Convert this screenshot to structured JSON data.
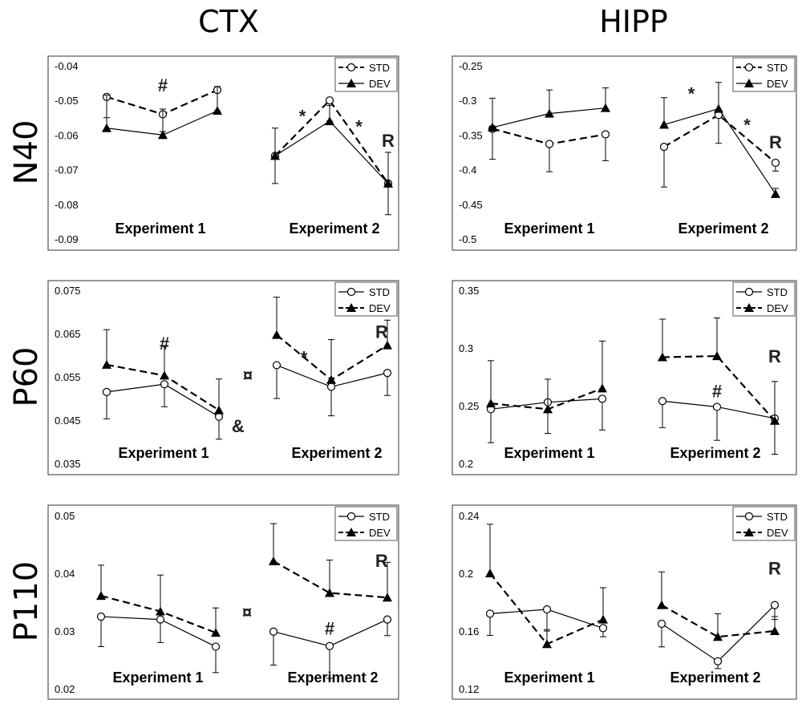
{
  "figure": {
    "column_titles": [
      "CTX",
      "HIPP"
    ],
    "row_titles": [
      "N40",
      "P60",
      "P110"
    ],
    "experiment_labels": [
      "Experiment 1",
      "Experiment 2"
    ]
  },
  "colors": {
    "line": "#000000",
    "frame": "#555555"
  },
  "chart_data": [
    {
      "type": "line",
      "region": "CTX",
      "component": "N40",
      "ylim": [
        -0.09,
        -0.04
      ],
      "yticks": [
        "-0.04",
        "-0.05",
        "-0.06",
        "-0.07",
        "-0.08",
        "-0.09"
      ],
      "yticks_values": [
        -0.04,
        -0.05,
        -0.06,
        -0.07,
        -0.08,
        -0.09
      ],
      "legend": {
        "position": "top-right",
        "entries": [
          "STD",
          "DEV"
        ]
      },
      "series": [
        {
          "name": "STD",
          "style": "dashed-open-circle",
          "values": [
            [
              -0.049,
              -0.054,
              -0.047
            ],
            [
              -0.066,
              -0.05,
              -0.074
            ]
          ],
          "err": [
            [
              0.006,
              0.005,
              0.006
            ],
            [
              0.008,
              0.006,
              0.009
            ]
          ]
        },
        {
          "name": "DEV",
          "style": "solid-filled-triangle",
          "values": [
            [
              -0.058,
              -0.06,
              -0.053
            ],
            [
              -0.066,
              -0.056,
              -0.074
            ]
          ],
          "err": [
            [
              0.0095,
              0.0075,
              0.007
            ],
            [
              0.008,
              0.0045,
              0.009
            ]
          ]
        }
      ],
      "annotations": [
        {
          "text": "#",
          "exp": 0,
          "x": 1,
          "y": -0.0455
        },
        {
          "text": "*",
          "exp": 1,
          "x": 0.5,
          "y": -0.0545
        },
        {
          "text": "*",
          "exp": 1,
          "x": 1.5,
          "y": -0.0575
        },
        {
          "text": "R",
          "exp": 1,
          "x": 2,
          "y": -0.0615
        }
      ]
    },
    {
      "type": "line",
      "region": "HIPP",
      "component": "N40",
      "ylim": [
        -0.5,
        -0.25
      ],
      "yticks": [
        "-0.25",
        "-0.3",
        "-0.35",
        "-0.4",
        "-0.45",
        "-0.5"
      ],
      "yticks_values": [
        -0.25,
        -0.3,
        -0.35,
        -0.4,
        -0.45,
        -0.5
      ],
      "legend": {
        "position": "top-right",
        "entries": [
          "STD",
          "DEV"
        ]
      },
      "series": [
        {
          "name": "STD",
          "style": "dashed-open-circle",
          "values": [
            [
              -0.341,
              -0.363,
              -0.349
            ],
            [
              -0.367,
              -0.321,
              -0.39
            ]
          ],
          "err": [
            [
              0.044,
              0.04,
              0.038
            ],
            [
              0.058,
              0.041,
              0.012
            ]
          ]
        },
        {
          "name": "DEV",
          "style": "solid-filled-triangle",
          "values": [
            [
              -0.339,
              -0.319,
              -0.311
            ],
            [
              -0.335,
              -0.312,
              -0.435
            ]
          ],
          "err": [
            [
              0.042,
              0.034,
              0.029
            ],
            [
              0.039,
              0.038,
              0.008
            ]
          ]
        }
      ],
      "annotations": [
        {
          "text": "*",
          "exp": 1,
          "x": 0.5,
          "y": -0.29
        },
        {
          "text": "*",
          "exp": 1,
          "x": 1.5,
          "y": -0.335
        },
        {
          "text": "R",
          "exp": 1,
          "x": 2,
          "y": -0.36
        }
      ]
    },
    {
      "type": "line",
      "region": "CTX",
      "component": "P60",
      "ylim": [
        0.035,
        0.075
      ],
      "yticks": [
        "0.075",
        "0.065",
        "0.055",
        "0.045",
        "0.035"
      ],
      "yticks_values": [
        0.075,
        0.065,
        0.055,
        0.045,
        0.035
      ],
      "legend": {
        "position": "top-right",
        "entries": [
          "STD",
          "DEV"
        ]
      },
      "series": [
        {
          "name": "STD",
          "style": "solid-open-circle",
          "values": [
            [
              0.0515,
              0.0533,
              0.0458
            ],
            [
              0.0577,
              0.0527,
              0.0559
            ]
          ],
          "err": [
            [
              0.0062,
              0.0052,
              0.0052
            ],
            [
              0.0077,
              0.0067,
              0.0052
            ]
          ]
        },
        {
          "name": "DEV",
          "style": "dashed-filled-triangle",
          "values": [
            [
              0.0578,
              0.0553,
              0.0473
            ],
            [
              0.0647,
              0.0543,
              0.0623
            ]
          ],
          "err": [
            [
              0.0081,
              0.0067,
              0.0072
            ],
            [
              0.0087,
              0.0093,
              0.0058
            ]
          ]
        }
      ],
      "annotations": [
        {
          "text": "#",
          "exp": 0,
          "x": 1,
          "y": 0.0628
        },
        {
          "text": "&",
          "exp": 0,
          "x": 2.35,
          "y": 0.0437
        },
        {
          "text": "¤",
          "exp": "gap",
          "x": 0,
          "y": 0.0555
        },
        {
          "text": "*",
          "exp": 1,
          "x": 0.5,
          "y": 0.0595
        },
        {
          "text": "R",
          "exp": 1,
          "x": 1.9,
          "y": 0.0655
        }
      ]
    },
    {
      "type": "line",
      "region": "HIPP",
      "component": "P60",
      "ylim": [
        0.2,
        0.35
      ],
      "yticks": [
        "0.35",
        "0.3",
        "0.25",
        "0.2"
      ],
      "yticks_values": [
        0.35,
        0.3,
        0.25,
        0.2
      ],
      "legend": {
        "position": "top-right",
        "entries": [
          "STD",
          "DEV"
        ]
      },
      "series": [
        {
          "name": "STD",
          "style": "solid-open-circle",
          "values": [
            [
              0.247,
              0.253,
              0.256
            ],
            [
              0.254,
              0.249,
              0.239
            ]
          ],
          "err": [
            [
              0.029,
              0.027,
              0.027
            ],
            [
              0.023,
              0.029,
              0.031
            ]
          ]
        },
        {
          "name": "DEV",
          "style": "dashed-filled-triangle",
          "values": [
            [
              0.252,
              0.247,
              0.265
            ],
            [
              0.292,
              0.293,
              0.237
            ]
          ],
          "err": [
            [
              0.037,
              0.026,
              0.041
            ],
            [
              0.033,
              0.033,
              0.034
            ]
          ]
        }
      ],
      "annotations": [
        {
          "text": "#",
          "exp": 1,
          "x": 1,
          "y": 0.263
        },
        {
          "text": "R",
          "exp": 1,
          "x": 2,
          "y": 0.293
        }
      ]
    },
    {
      "type": "line",
      "region": "CTX",
      "component": "P110",
      "ylim": [
        0.02,
        0.05
      ],
      "yticks": [
        "0.05",
        "0.04",
        "0.03",
        "0.02"
      ],
      "yticks_values": [
        0.05,
        0.04,
        0.03,
        0.02
      ],
      "legend": {
        "position": "top-right",
        "entries": [
          "STD",
          "DEV"
        ]
      },
      "series": [
        {
          "name": "STD",
          "style": "solid-open-circle",
          "values": [
            [
              0.0325,
              0.032,
              0.0273
            ],
            [
              0.0299,
              0.0274,
              0.032
            ]
          ],
          "err": [
            [
              0.0052,
              0.004,
              0.0045
            ],
            [
              0.0058,
              0.0056,
              0.0028
            ]
          ]
        },
        {
          "name": "DEV",
          "style": "dashed-filled-triangle",
          "values": [
            [
              0.0361,
              0.0334,
              0.0297
            ],
            [
              0.0421,
              0.0366,
              0.0358
            ]
          ],
          "err": [
            [
              0.0053,
              0.0063,
              0.0043
            ],
            [
              0.0065,
              0.0057,
              0.0061
            ]
          ]
        }
      ],
      "annotations": [
        {
          "text": "¤",
          "exp": "gap",
          "x": 0,
          "y": 0.0333
        },
        {
          "text": "R",
          "exp": 1,
          "x": 1.9,
          "y": 0.0422
        },
        {
          "text": "#",
          "exp": 1,
          "x": 1,
          "y": 0.0305
        }
      ]
    },
    {
      "type": "line",
      "region": "HIPP",
      "component": "P110",
      "ylim": [
        0.12,
        0.24
      ],
      "yticks": [
        "0.24",
        "0.2",
        "0.16",
        "0.12"
      ],
      "yticks_values": [
        0.24,
        0.2,
        0.16,
        0.12
      ],
      "legend": {
        "position": "top-right",
        "entries": [
          "STD",
          "DEV"
        ]
      },
      "series": [
        {
          "name": "STD",
          "style": "solid-open-circle",
          "values": [
            [
              0.172,
              0.175,
              0.162
            ],
            [
              0.165,
              0.139,
              0.178
            ]
          ],
          "err": [
            [
              0.015,
              0.015,
              0.006
            ],
            [
              0.016,
              0.005,
              0.01
            ]
          ]
        },
        {
          "name": "DEV",
          "style": "dashed-filled-triangle",
          "values": [
            [
              0.2,
              0.151,
              0.168
            ],
            [
              0.178,
              0.156,
              0.16
            ]
          ],
          "err": [
            [
              0.034,
              0.01,
              0.022
            ],
            [
              0.023,
              0.016,
              0.01
            ]
          ]
        }
      ],
      "annotations": [
        {
          "text": "R",
          "exp": 1,
          "x": 2,
          "y": 0.2035
        }
      ]
    }
  ]
}
